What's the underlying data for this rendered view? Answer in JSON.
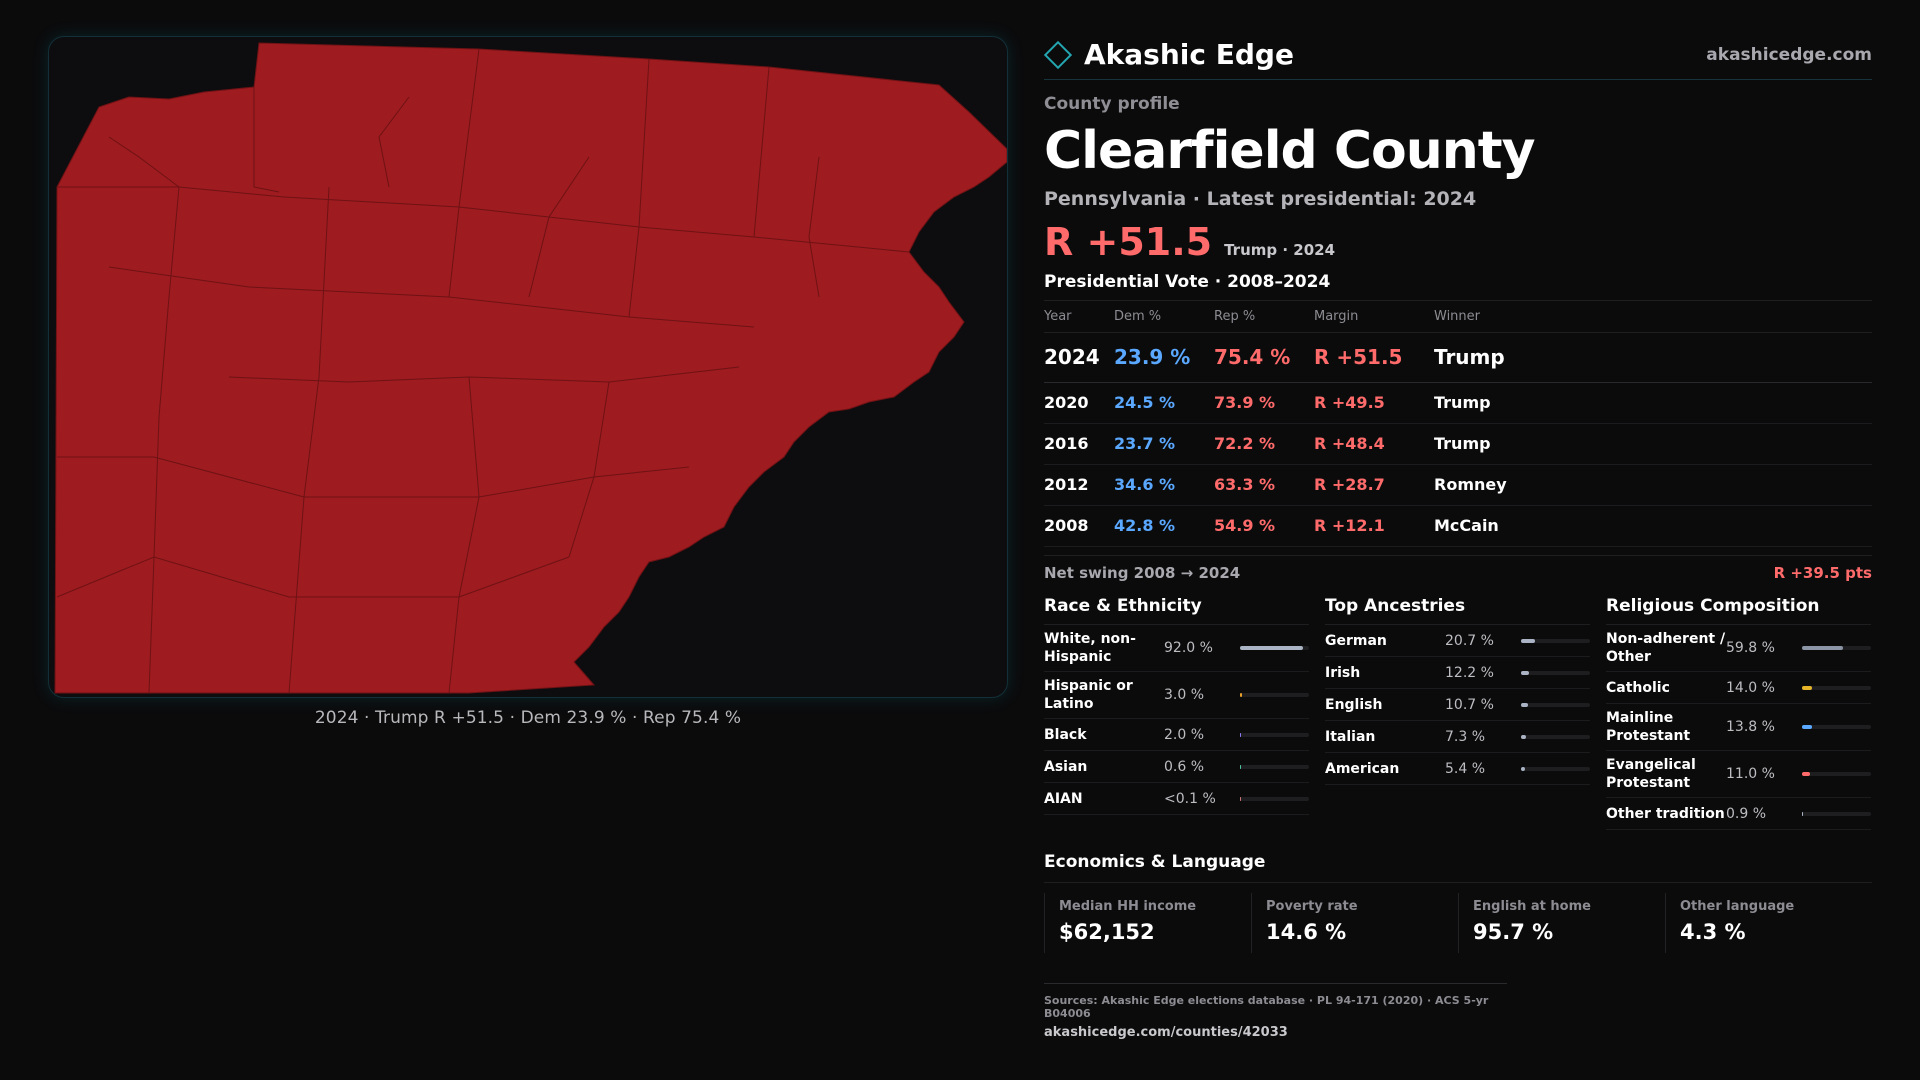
{
  "map": {
    "caption": "2024 · Trump R +51.5 · Dem 23.9 % · Rep 75.4 %",
    "fill_color": "#9e1b1f",
    "border_color": "#6e1215"
  },
  "brand": {
    "icon": "diamond-icon",
    "name": "Akashic Edge",
    "url": "akashicedge.com",
    "accent": "#24a6b0"
  },
  "profile": {
    "label": "County profile",
    "county": "Clearfield County",
    "subtitle": "Pennsylvania · Latest presidential: 2024",
    "headline_margin": "R +51.5",
    "headline_note": "Trump · 2024"
  },
  "vote": {
    "title": "Presidential Vote · 2008–2024",
    "headers": {
      "year": "Year",
      "dem": "Dem %",
      "rep": "Rep %",
      "margin": "Margin",
      "winner": "Winner"
    },
    "rows": [
      {
        "year": "2024",
        "dem": "23.9 %",
        "rep": "75.4 %",
        "margin": "R +51.5",
        "winner": "Trump"
      },
      {
        "year": "2020",
        "dem": "24.5 %",
        "rep": "73.9 %",
        "margin": "R +49.5",
        "winner": "Trump"
      },
      {
        "year": "2016",
        "dem": "23.7 %",
        "rep": "72.2 %",
        "margin": "R +48.4",
        "winner": "Trump"
      },
      {
        "year": "2012",
        "dem": "34.6 %",
        "rep": "63.3 %",
        "margin": "R +28.7",
        "winner": "Romney"
      },
      {
        "year": "2008",
        "dem": "42.8 %",
        "rep": "54.9 %",
        "margin": "R +12.1",
        "winner": "McCain"
      }
    ],
    "swing_label": "Net swing 2008 → 2024",
    "swing_value": "R +39.5 pts"
  },
  "race": {
    "title": "Race & Ethnicity",
    "items": [
      {
        "label": "White, non-Hispanic",
        "value": "92.0 %",
        "fraction": 0.92,
        "color": "#aab4c4"
      },
      {
        "label": "Hispanic or Latino",
        "value": "3.0 %",
        "fraction": 0.03,
        "color": "#e7a02a"
      },
      {
        "label": "Black",
        "value": "2.0 %",
        "fraction": 0.02,
        "color": "#8a7cf0"
      },
      {
        "label": "Asian",
        "value": "0.6 %",
        "fraction": 0.006,
        "color": "#4fc3a1"
      },
      {
        "label": "AIAN",
        "value": "<0.1 %",
        "fraction": 0.001,
        "color": "#c77"
      }
    ]
  },
  "ancestry": {
    "title": "Top Ancestries",
    "items": [
      {
        "label": "German",
        "value": "20.7 %",
        "fraction": 0.207,
        "color": "#aab4c4"
      },
      {
        "label": "Irish",
        "value": "12.2 %",
        "fraction": 0.122,
        "color": "#aab4c4"
      },
      {
        "label": "English",
        "value": "10.7 %",
        "fraction": 0.107,
        "color": "#aab4c4"
      },
      {
        "label": "Italian",
        "value": "7.3 %",
        "fraction": 0.073,
        "color": "#aab4c4"
      },
      {
        "label": "American",
        "value": "5.4 %",
        "fraction": 0.054,
        "color": "#aab4c4"
      }
    ]
  },
  "religion": {
    "title": "Religious Composition",
    "items": [
      {
        "label": "Non-adherent / Other",
        "value": "59.8 %",
        "fraction": 0.598,
        "color": "#8b95a5"
      },
      {
        "label": "Catholic",
        "value": "14.0 %",
        "fraction": 0.14,
        "color": "#e7b52a"
      },
      {
        "label": "Mainline Protestant",
        "value": "13.8 %",
        "fraction": 0.138,
        "color": "#5aa8ff"
      },
      {
        "label": "Evangelical Protestant",
        "value": "11.0 %",
        "fraction": 0.11,
        "color": "#ff6b6b"
      },
      {
        "label": "Other tradition",
        "value": "0.9 %",
        "fraction": 0.009,
        "color": "#aab4c4"
      }
    ]
  },
  "economics": {
    "title": "Economics & Language",
    "items": [
      {
        "label": "Median HH income",
        "value": "$62,152"
      },
      {
        "label": "Poverty rate",
        "value": "14.6 %"
      },
      {
        "label": "English at home",
        "value": "95.7 %"
      },
      {
        "label": "Other language",
        "value": "4.3 %"
      }
    ]
  },
  "sources": {
    "text": "Sources: Akashic Edge elections database · PL 94-171 (2020) · ACS 5-yr B04006",
    "url": "akashicedge.com/counties/42033"
  }
}
